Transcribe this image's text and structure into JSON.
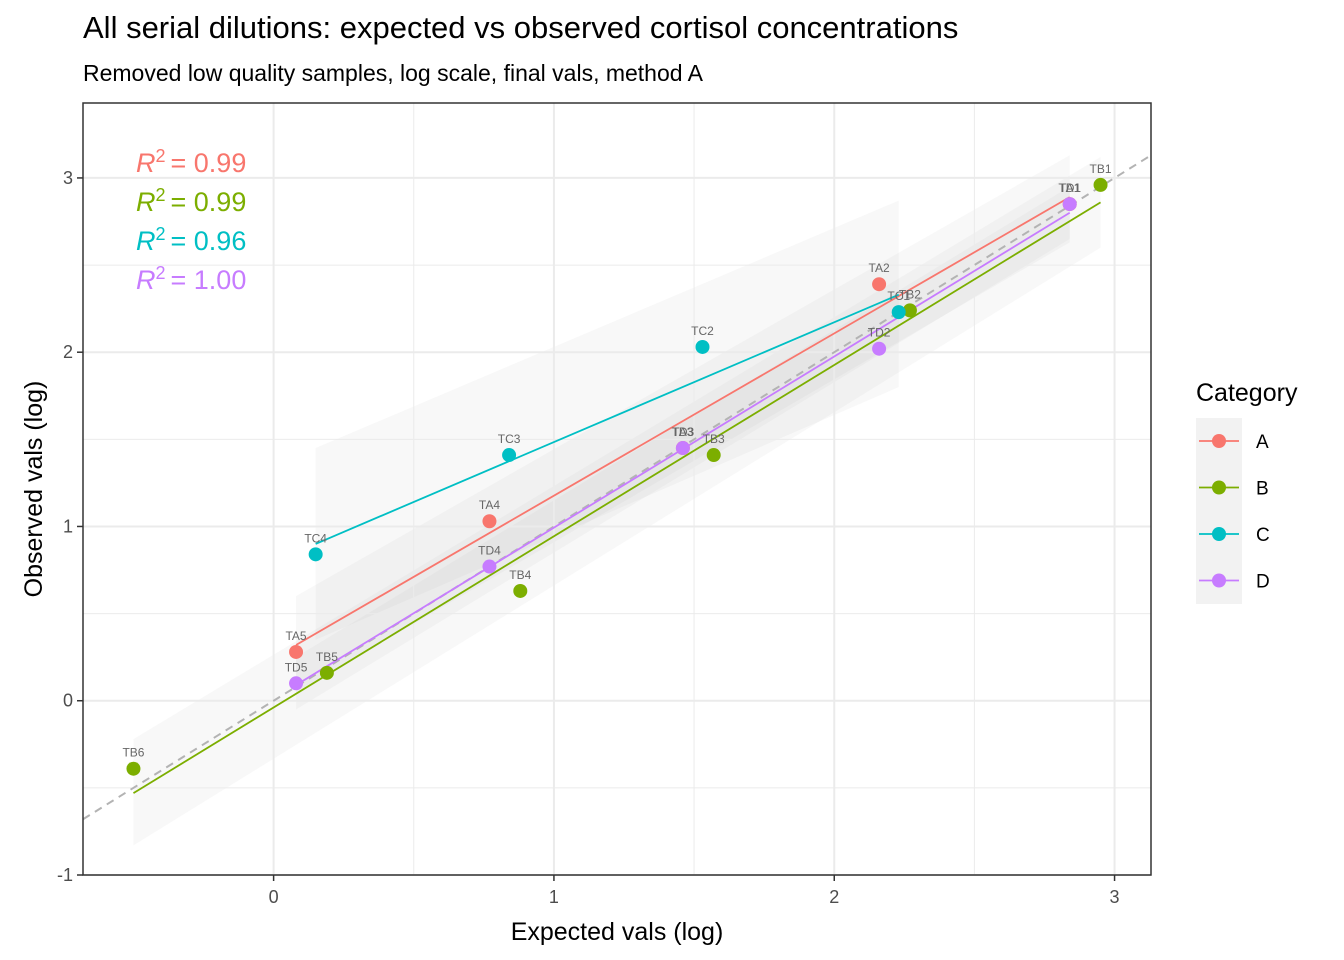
{
  "chart_data": {
    "type": "scatter",
    "title": "All serial dilutions: expected vs observed cortisol concentrations",
    "subtitle": "Removed low quality samples, log scale, final vals, method A",
    "xlabel": "Expected vals (log)",
    "ylabel": "Observed vals (log)",
    "xlim": [
      -0.68,
      3.13
    ],
    "ylim": [
      -1.0,
      3.43
    ],
    "x_ticks": [
      0,
      1,
      2,
      3
    ],
    "y_ticks": [
      -1,
      0,
      1,
      2,
      3
    ],
    "x_tick_labels": [
      "0",
      "1",
      "2",
      "3"
    ],
    "y_tick_labels": [
      "-1",
      "0",
      "1",
      "2",
      "3"
    ],
    "grid": true,
    "legend": {
      "title": "Category",
      "position": "right"
    },
    "identity_line": {
      "style": "dashed",
      "color": "#b3b3b3"
    },
    "series": [
      {
        "name": "A",
        "color": "#F8766D",
        "r2_label": "= 0.99",
        "points": [
          {
            "label": "TA1",
            "x": 2.84,
            "y": 2.85
          },
          {
            "label": "TA2",
            "x": 2.16,
            "y": 2.39
          },
          {
            "label": "TA3",
            "x": 1.46,
            "y": 1.45
          },
          {
            "label": "TA4",
            "x": 0.77,
            "y": 1.03
          },
          {
            "label": "TA5",
            "x": 0.08,
            "y": 0.28
          }
        ],
        "fit": {
          "x0": 0.08,
          "y0": 0.32,
          "x1": 2.84,
          "y1": 2.89
        },
        "band": {
          "x0": 0.08,
          "x1": 2.84,
          "lo0": 0.05,
          "hi0": 0.6,
          "lo1": 2.63,
          "hi1": 3.13
        }
      },
      {
        "name": "B",
        "color": "#7CAE00",
        "r2_label": "= 0.99",
        "points": [
          {
            "label": "TB1",
            "x": 2.95,
            "y": 2.96
          },
          {
            "label": "TB2",
            "x": 2.27,
            "y": 2.24
          },
          {
            "label": "TB3",
            "x": 1.57,
            "y": 1.41
          },
          {
            "label": "TB4",
            "x": 0.88,
            "y": 0.63
          },
          {
            "label": "TB5",
            "x": 0.19,
            "y": 0.16
          },
          {
            "label": "TB6",
            "x": -0.5,
            "y": -0.39
          }
        ],
        "fit": {
          "x0": -0.5,
          "y0": -0.53,
          "x1": 2.95,
          "y1": 2.86
        },
        "band": {
          "x0": -0.5,
          "x1": 2.95,
          "lo0": -0.83,
          "hi0": -0.22,
          "lo1": 2.6,
          "hi1": 3.12
        }
      },
      {
        "name": "C",
        "color": "#00BFC4",
        "r2_label": "= 0.96",
        "points": [
          {
            "label": "TC1",
            "x": 2.23,
            "y": 2.23
          },
          {
            "label": "TC2",
            "x": 1.53,
            "y": 2.03
          },
          {
            "label": "TC3",
            "x": 0.84,
            "y": 1.41
          },
          {
            "label": "TC4",
            "x": 0.15,
            "y": 0.84
          }
        ],
        "fit": {
          "x0": 0.15,
          "y0": 0.9,
          "x1": 2.23,
          "y1": 2.33
        },
        "band": {
          "x0": 0.15,
          "x1": 2.23,
          "lo0": 0.35,
          "hi0": 1.45,
          "lo1": 1.8,
          "hi1": 2.87
        }
      },
      {
        "name": "D",
        "color": "#C77CFF",
        "r2_label": "= 1.00",
        "points": [
          {
            "label": "TD1",
            "x": 2.84,
            "y": 2.85
          },
          {
            "label": "TD2",
            "x": 2.16,
            "y": 2.02
          },
          {
            "label": "TD3",
            "x": 1.46,
            "y": 1.45
          },
          {
            "label": "TD4",
            "x": 0.77,
            "y": 0.77
          },
          {
            "label": "TD5",
            "x": 0.08,
            "y": 0.1
          }
        ],
        "fit": {
          "x0": 0.08,
          "y0": 0.09,
          "x1": 2.84,
          "y1": 2.8
        },
        "band": {
          "x0": 0.08,
          "x1": 2.84,
          "lo0": -0.05,
          "hi0": 0.25,
          "lo1": 2.65,
          "hi1": 2.95
        }
      }
    ]
  }
}
